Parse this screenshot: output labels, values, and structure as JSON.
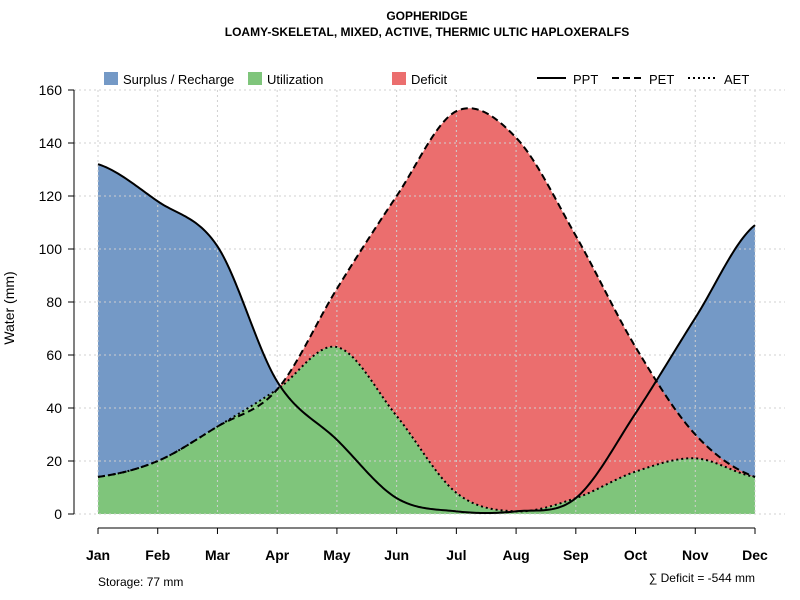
{
  "chart_data": {
    "type": "area",
    "title": "GOPHERIDGE",
    "subtitle": "LOAMY-SKELETAL, MIXED, ACTIVE, THERMIC ULTIC HAPLOXERALFS",
    "xlabel": "",
    "ylabel": "Water (mm)",
    "ylim": [
      0,
      160
    ],
    "yticks": [
      0,
      20,
      40,
      60,
      80,
      100,
      120,
      140,
      160
    ],
    "categories": [
      "Jan",
      "Feb",
      "Mar",
      "Apr",
      "May",
      "Jun",
      "Jul",
      "Aug",
      "Sep",
      "Oct",
      "Nov",
      "Dec"
    ],
    "grid": true,
    "legend_position": "top",
    "series": [
      {
        "name": "PPT",
        "style": "solid",
        "values": [
          132,
          118,
          101,
          50,
          28,
          6,
          1,
          1,
          6,
          38,
          74,
          109
        ]
      },
      {
        "name": "PET",
        "style": "dashed",
        "values": [
          14,
          20,
          33,
          47,
          85,
          120,
          152,
          142,
          105,
          63,
          30,
          14
        ]
      },
      {
        "name": "AET",
        "style": "dotted",
        "values": [
          14,
          20,
          33,
          47,
          63,
          37,
          8,
          1,
          6,
          16,
          21,
          14
        ]
      }
    ],
    "areas": [
      {
        "name": "Surplus / Recharge",
        "color": "#7499c6"
      },
      {
        "name": "Utilization",
        "color": "#7fc57b"
      },
      {
        "name": "Deficit",
        "color": "#eb6e6e"
      }
    ],
    "annotations": {
      "storage": "Storage: 77 mm",
      "deficit": "∑ Deficit = -544 mm"
    }
  }
}
